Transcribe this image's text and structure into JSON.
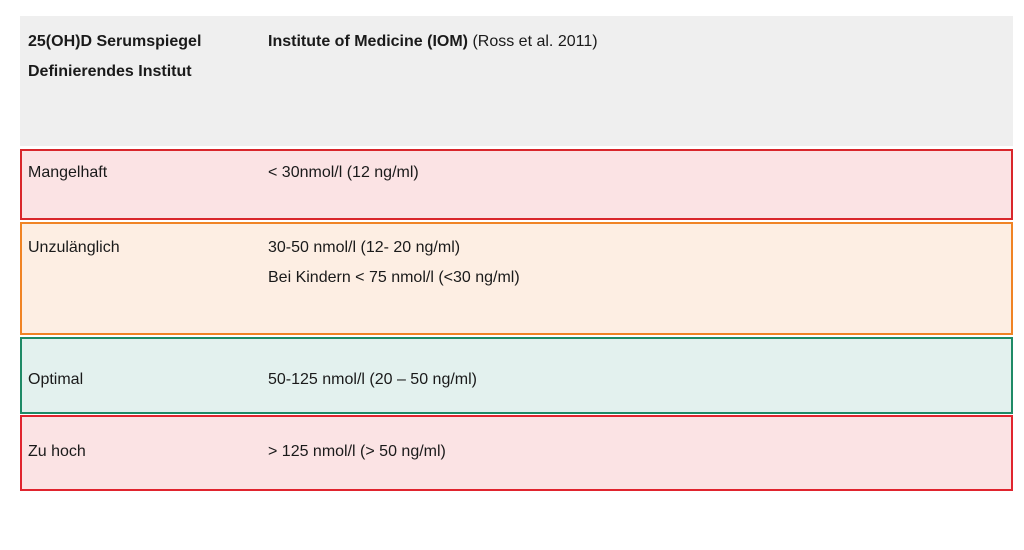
{
  "header": {
    "col1_line1": "25(OH)D Serumspiegel",
    "col1_line2": "Definierendes Institut",
    "col2_bold": "Institute of Medicine (IOM)",
    "col2_ref": "(Ross et al. 2011)"
  },
  "rows": [
    {
      "label": "Mangelhaft",
      "lines": [
        "< 30nmol/l (12 ng/ml)"
      ],
      "border_color": "#d9262b",
      "bg_color": "#fbe3e4"
    },
    {
      "label": "Unzulänglich",
      "lines": [
        "30-50 nmol/l (12- 20 ng/ml)",
        "Bei Kindern < 75 nmol/l (<30 ng/ml)"
      ],
      "border_color": "#f08324",
      "bg_color": "#fdeee3"
    },
    {
      "label": "Optimal",
      "lines": [
        "50-125 nmol/l (20 – 50 ng/ml)"
      ],
      "border_color": "#1e8a66",
      "bg_color": "#e3f1ee"
    },
    {
      "label": "Zu hoch",
      "lines": [
        "> 125 nmol/l (> 50 ng/ml)"
      ],
      "border_color": "#e0242e",
      "bg_color": "#fbe3e4"
    }
  ]
}
